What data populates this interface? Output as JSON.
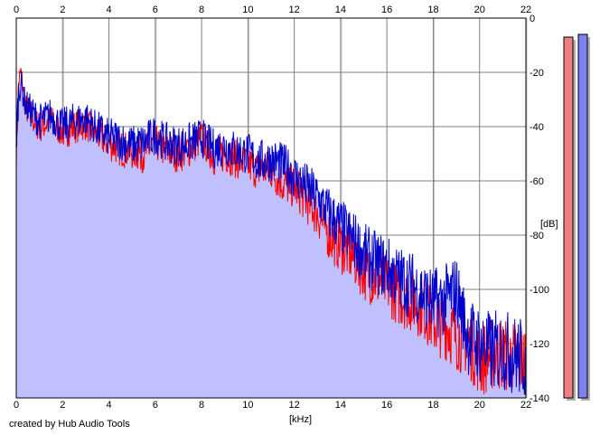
{
  "chart_data": {
    "type": "line",
    "xlabel": "[kHz]",
    "ylabel": "[dB]",
    "xlim": [
      0,
      22
    ],
    "ylim": [
      -140,
      0
    ],
    "x_ticks": [
      0,
      2,
      4,
      6,
      8,
      10,
      12,
      14,
      16,
      18,
      20,
      22
    ],
    "y_ticks": [
      0,
      -20,
      -40,
      -60,
      -80,
      -100,
      -120,
      -140
    ],
    "grid": true,
    "series": [
      {
        "color": "#ff0000",
        "x": [
          0,
          0.1,
          0.2,
          0.4,
          0.7,
          1.0,
          1.5,
          2.0,
          2.5,
          3.0,
          3.5,
          4.0,
          4.5,
          5.0,
          5.5,
          6.0,
          6.5,
          7.0,
          7.5,
          8.0,
          8.5,
          9.0,
          9.5,
          10.0,
          10.5,
          11.0,
          11.5,
          12.0,
          12.5,
          13.0,
          13.5,
          14.0,
          14.5,
          15.0,
          15.5,
          16.0,
          16.5,
          17.0,
          17.5,
          18.0,
          18.5,
          19.0,
          19.5,
          20.0,
          20.5,
          21.0,
          21.5,
          22.0
        ],
        "values": [
          -50,
          -24,
          -20,
          -33,
          -37,
          -40,
          -38,
          -42,
          -40,
          -39,
          -43,
          -46,
          -48,
          -49,
          -50,
          -46,
          -49,
          -50,
          -48,
          -44,
          -51,
          -50,
          -52,
          -54,
          -56,
          -56,
          -61,
          -62,
          -67,
          -72,
          -80,
          -84,
          -88,
          -93,
          -96,
          -98,
          -102,
          -104,
          -106,
          -112,
          -113,
          -117,
          -119,
          -126,
          -124,
          -124,
          -125,
          -127
        ]
      },
      {
        "color": "#0000cc",
        "x": [
          0,
          0.1,
          0.2,
          0.4,
          0.7,
          1.0,
          1.5,
          2.0,
          2.5,
          3.0,
          3.5,
          4.0,
          4.5,
          5.0,
          5.5,
          6.0,
          6.5,
          7.0,
          7.5,
          8.0,
          8.5,
          9.0,
          9.5,
          10.0,
          10.5,
          11.0,
          11.5,
          12.0,
          12.5,
          13.0,
          13.5,
          14.0,
          14.5,
          15.0,
          15.5,
          16.0,
          16.5,
          17.0,
          17.5,
          18.0,
          18.5,
          19.0,
          19.5,
          20.0,
          20.5,
          21.0,
          21.5,
          22.0
        ],
        "values": [
          -45,
          -27,
          -24,
          -32,
          -35,
          -38,
          -36,
          -40,
          -38,
          -37,
          -41,
          -44,
          -45,
          -47,
          -46,
          -43,
          -46,
          -47,
          -46,
          -44,
          -48,
          -47,
          -49,
          -50,
          -53,
          -52,
          -54,
          -58,
          -62,
          -66,
          -72,
          -77,
          -81,
          -87,
          -90,
          -92,
          -96,
          -98,
          -101,
          -105,
          -104,
          -100,
          -117,
          -120,
          -123,
          -122,
          -124,
          -126
        ]
      }
    ],
    "level_meters": [
      {
        "color": "#f08080",
        "level_db": -7
      },
      {
        "color": "#8080f0",
        "level_db": -6
      }
    ]
  },
  "footer": {
    "credit": "created by Hub Audio Tools"
  }
}
